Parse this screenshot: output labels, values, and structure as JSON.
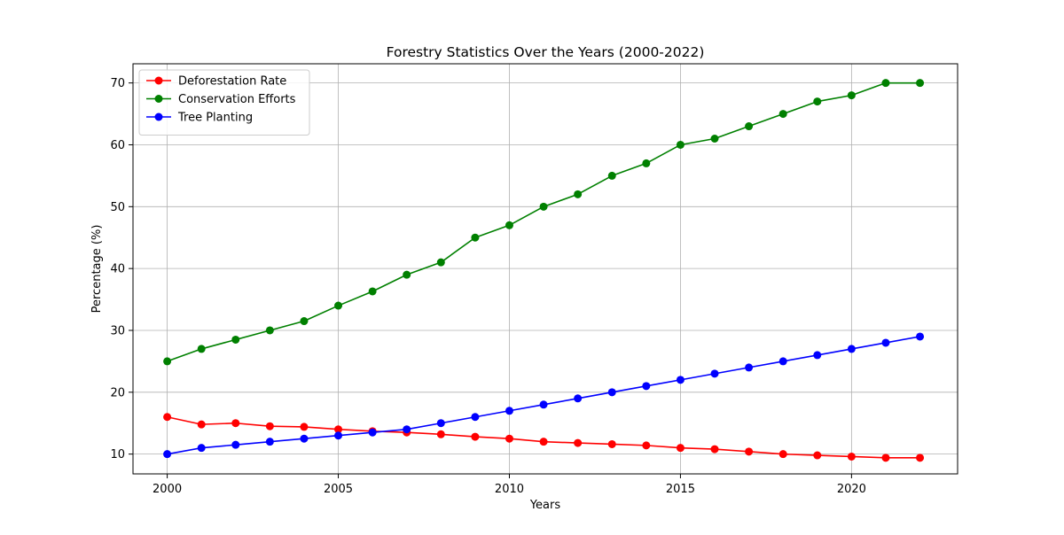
{
  "chart_data": {
    "type": "line",
    "title": "Forestry Statistics Over the Years (2000-2022)",
    "xlabel": "Years",
    "ylabel": "Percentage (%)",
    "x": [
      2000,
      2001,
      2002,
      2003,
      2004,
      2005,
      2006,
      2007,
      2008,
      2009,
      2010,
      2011,
      2012,
      2013,
      2014,
      2015,
      2016,
      2017,
      2018,
      2019,
      2020,
      2021,
      2022
    ],
    "xlim": [
      1999,
      2023.1
    ],
    "ylim": [
      6.8,
      73.1
    ],
    "xticks": [
      2000,
      2005,
      2010,
      2015,
      2020
    ],
    "yticks": [
      10,
      20,
      30,
      40,
      50,
      60,
      70
    ],
    "grid": true,
    "legend_position": "top-left",
    "series": [
      {
        "name": "Deforestation Rate",
        "color": "#ff0000",
        "values": [
          16.0,
          14.8,
          15.0,
          14.5,
          14.4,
          14.0,
          13.7,
          13.5,
          13.2,
          12.8,
          12.5,
          12.0,
          11.8,
          11.6,
          11.4,
          11.0,
          10.8,
          10.4,
          10.0,
          9.8,
          9.6,
          9.4,
          9.4
        ]
      },
      {
        "name": "Conservation Efforts",
        "color": "#008000",
        "values": [
          25,
          27,
          28.5,
          30,
          31.5,
          34,
          36.3,
          39,
          41,
          45,
          47,
          50,
          52,
          55,
          57,
          60,
          61,
          63,
          65,
          67,
          68,
          70,
          70
        ]
      },
      {
        "name": "Tree Planting",
        "color": "#0000ff",
        "values": [
          10,
          11,
          11.5,
          12,
          12.5,
          13,
          13.5,
          14,
          15,
          16,
          17,
          18,
          19,
          20,
          21,
          22,
          23,
          24,
          25,
          26,
          27,
          28,
          29
        ]
      }
    ]
  }
}
